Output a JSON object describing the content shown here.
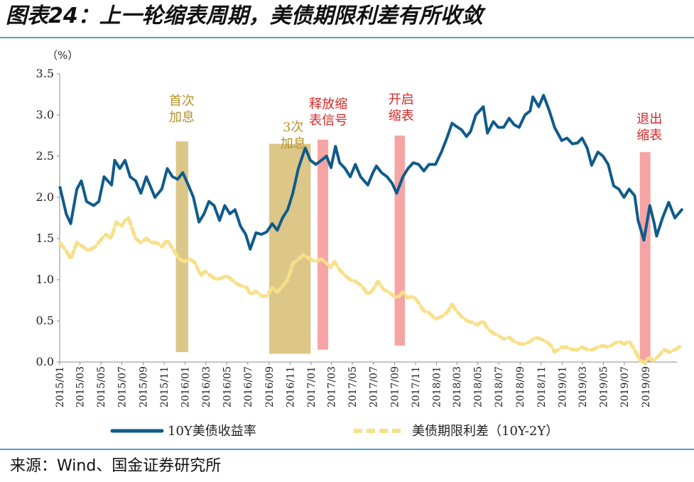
{
  "title": "图表24：上一轮缩表周期，美债期限利差有所收敛",
  "source": "来源：Wind、国金证券研究所",
  "chart_data": {
    "type": "line",
    "yunit": "（%）",
    "ylim": [
      0,
      3.5
    ],
    "yticks": [
      "0.0",
      "0.5",
      "1.0",
      "1.5",
      "2.0",
      "2.5",
      "3.0",
      "3.5"
    ],
    "xlim": [
      "2015-01",
      "2019-12"
    ],
    "xticks": [
      "2015/01",
      "2015/03",
      "2015/05",
      "2015/07",
      "2015/09",
      "2015/11",
      "2016/01",
      "2016/03",
      "2016/05",
      "2016/07",
      "2016/09",
      "2016/11",
      "2017/01",
      "2017/03",
      "2017/05",
      "2017/07",
      "2017/09",
      "2017/11",
      "2018/01",
      "2018/03",
      "2018/05",
      "2018/07",
      "2018/09",
      "2018/11",
      "2019/01",
      "2019/03",
      "2019/05",
      "2019/07",
      "2019/09"
    ],
    "grid": false,
    "legend": "bottom",
    "series": [
      {
        "name": "10Y美债收益率",
        "color": "#0f5b8c",
        "style": "solid",
        "points": [
          [
            "2015-01-02",
            2.12
          ],
          [
            "2015-01-20",
            1.8
          ],
          [
            "2015-02-02",
            1.68
          ],
          [
            "2015-02-20",
            2.1
          ],
          [
            "2015-03-05",
            2.2
          ],
          [
            "2015-03-20",
            1.95
          ],
          [
            "2015-04-10",
            1.9
          ],
          [
            "2015-04-25",
            1.95
          ],
          [
            "2015-05-10",
            2.25
          ],
          [
            "2015-06-01",
            2.15
          ],
          [
            "2015-06-10",
            2.45
          ],
          [
            "2015-06-25",
            2.35
          ],
          [
            "2015-07-10",
            2.45
          ],
          [
            "2015-07-25",
            2.25
          ],
          [
            "2015-08-10",
            2.2
          ],
          [
            "2015-08-25",
            2.05
          ],
          [
            "2015-09-10",
            2.25
          ],
          [
            "2015-09-25",
            2.1
          ],
          [
            "2015-10-05",
            2.0
          ],
          [
            "2015-10-25",
            2.1
          ],
          [
            "2015-11-10",
            2.35
          ],
          [
            "2015-11-25",
            2.25
          ],
          [
            "2015-12-10",
            2.22
          ],
          [
            "2015-12-25",
            2.3
          ],
          [
            "2016-01-10",
            2.15
          ],
          [
            "2016-01-25",
            2.0
          ],
          [
            "2016-02-10",
            1.7
          ],
          [
            "2016-02-25",
            1.8
          ],
          [
            "2016-03-10",
            1.95
          ],
          [
            "2016-03-25",
            1.9
          ],
          [
            "2016-04-10",
            1.72
          ],
          [
            "2016-04-25",
            1.9
          ],
          [
            "2016-05-10",
            1.8
          ],
          [
            "2016-05-25",
            1.85
          ],
          [
            "2016-06-10",
            1.65
          ],
          [
            "2016-06-25",
            1.55
          ],
          [
            "2016-07-08",
            1.37
          ],
          [
            "2016-07-25",
            1.57
          ],
          [
            "2016-08-10",
            1.55
          ],
          [
            "2016-08-25",
            1.58
          ],
          [
            "2016-09-10",
            1.68
          ],
          [
            "2016-09-25",
            1.6
          ],
          [
            "2016-10-10",
            1.75
          ],
          [
            "2016-10-25",
            1.85
          ],
          [
            "2016-11-09",
            2.05
          ],
          [
            "2016-11-25",
            2.35
          ],
          [
            "2016-12-15",
            2.6
          ],
          [
            "2016-12-30",
            2.45
          ],
          [
            "2017-01-15",
            2.4
          ],
          [
            "2017-01-31",
            2.45
          ],
          [
            "2017-02-15",
            2.5
          ],
          [
            "2017-02-28",
            2.36
          ],
          [
            "2017-03-13",
            2.62
          ],
          [
            "2017-03-25",
            2.42
          ],
          [
            "2017-04-10",
            2.35
          ],
          [
            "2017-04-25",
            2.25
          ],
          [
            "2017-05-10",
            2.4
          ],
          [
            "2017-05-25",
            2.25
          ],
          [
            "2017-06-15",
            2.15
          ],
          [
            "2017-06-30",
            2.3
          ],
          [
            "2017-07-10",
            2.38
          ],
          [
            "2017-07-25",
            2.3
          ],
          [
            "2017-08-10",
            2.25
          ],
          [
            "2017-08-25",
            2.17
          ],
          [
            "2017-09-07",
            2.05
          ],
          [
            "2017-09-25",
            2.25
          ],
          [
            "2017-10-10",
            2.35
          ],
          [
            "2017-10-25",
            2.42
          ],
          [
            "2017-11-10",
            2.4
          ],
          [
            "2017-11-25",
            2.32
          ],
          [
            "2017-12-10",
            2.4
          ],
          [
            "2017-12-29",
            2.4
          ],
          [
            "2018-01-15",
            2.55
          ],
          [
            "2018-01-31",
            2.72
          ],
          [
            "2018-02-15",
            2.9
          ],
          [
            "2018-02-28",
            2.86
          ],
          [
            "2018-03-15",
            2.82
          ],
          [
            "2018-03-29",
            2.74
          ],
          [
            "2018-04-10",
            2.8
          ],
          [
            "2018-04-25",
            3.0
          ],
          [
            "2018-05-17",
            3.1
          ],
          [
            "2018-05-29",
            2.78
          ],
          [
            "2018-06-15",
            2.92
          ],
          [
            "2018-06-29",
            2.85
          ],
          [
            "2018-07-15",
            2.85
          ],
          [
            "2018-07-31",
            2.96
          ],
          [
            "2018-08-15",
            2.88
          ],
          [
            "2018-08-29",
            2.85
          ],
          [
            "2018-09-15",
            3.0
          ],
          [
            "2018-09-30",
            3.05
          ],
          [
            "2018-10-08",
            3.22
          ],
          [
            "2018-10-25",
            3.1
          ],
          [
            "2018-11-08",
            3.24
          ],
          [
            "2018-11-25",
            3.05
          ],
          [
            "2018-12-10",
            2.85
          ],
          [
            "2018-12-31",
            2.69
          ],
          [
            "2019-01-15",
            2.72
          ],
          [
            "2019-01-31",
            2.65
          ],
          [
            "2019-02-15",
            2.66
          ],
          [
            "2019-02-28",
            2.72
          ],
          [
            "2019-03-15",
            2.6
          ],
          [
            "2019-03-28",
            2.39
          ],
          [
            "2019-04-15",
            2.55
          ],
          [
            "2019-04-30",
            2.5
          ],
          [
            "2019-05-15",
            2.4
          ],
          [
            "2019-05-31",
            2.14
          ],
          [
            "2019-06-15",
            2.1
          ],
          [
            "2019-06-30",
            2.0
          ],
          [
            "2019-07-15",
            2.1
          ],
          [
            "2019-07-31",
            2.02
          ],
          [
            "2019-08-10",
            1.72
          ],
          [
            "2019-08-27",
            1.48
          ],
          [
            "2019-09-13",
            1.9
          ],
          [
            "2019-09-25",
            1.7
          ],
          [
            "2019-10-03",
            1.53
          ],
          [
            "2019-10-20",
            1.75
          ],
          [
            "2019-11-07",
            1.94
          ],
          [
            "2019-11-25",
            1.75
          ],
          [
            "2019-12-15",
            1.85
          ]
        ]
      },
      {
        "name": "美债期限利差（10Y-2Y）",
        "color": "#f8e08a",
        "style": "dashed",
        "points": [
          [
            "2015-01-02",
            1.45
          ],
          [
            "2015-01-20",
            1.35
          ],
          [
            "2015-02-02",
            1.25
          ],
          [
            "2015-02-20",
            1.45
          ],
          [
            "2015-03-10",
            1.4
          ],
          [
            "2015-03-25",
            1.35
          ],
          [
            "2015-04-15",
            1.4
          ],
          [
            "2015-04-30",
            1.48
          ],
          [
            "2015-05-15",
            1.55
          ],
          [
            "2015-05-30",
            1.5
          ],
          [
            "2015-06-15",
            1.7
          ],
          [
            "2015-06-30",
            1.65
          ],
          [
            "2015-07-10",
            1.72
          ],
          [
            "2015-07-20",
            1.75
          ],
          [
            "2015-08-10",
            1.5
          ],
          [
            "2015-08-25",
            1.45
          ],
          [
            "2015-09-10",
            1.5
          ],
          [
            "2015-09-25",
            1.45
          ],
          [
            "2015-10-10",
            1.45
          ],
          [
            "2015-10-25",
            1.4
          ],
          [
            "2015-11-10",
            1.48
          ],
          [
            "2015-11-25",
            1.38
          ],
          [
            "2015-12-15",
            1.25
          ],
          [
            "2015-12-30",
            1.22
          ],
          [
            "2016-01-15",
            1.25
          ],
          [
            "2016-01-31",
            1.2
          ],
          [
            "2016-02-15",
            1.05
          ],
          [
            "2016-02-28",
            1.1
          ],
          [
            "2016-03-15",
            1.05
          ],
          [
            "2016-03-31",
            1.0
          ],
          [
            "2016-04-15",
            1.02
          ],
          [
            "2016-04-30",
            1.05
          ],
          [
            "2016-05-15",
            1.0
          ],
          [
            "2016-05-30",
            0.95
          ],
          [
            "2016-06-15",
            0.92
          ],
          [
            "2016-06-30",
            0.9
          ],
          [
            "2016-07-08",
            0.82
          ],
          [
            "2016-07-25",
            0.86
          ],
          [
            "2016-08-10",
            0.8
          ],
          [
            "2016-08-25",
            0.8
          ],
          [
            "2016-09-10",
            0.9
          ],
          [
            "2016-09-25",
            0.85
          ],
          [
            "2016-10-10",
            0.92
          ],
          [
            "2016-10-25",
            1.0
          ],
          [
            "2016-11-10",
            1.2
          ],
          [
            "2016-11-25",
            1.25
          ],
          [
            "2016-12-10",
            1.3
          ],
          [
            "2016-12-30",
            1.25
          ],
          [
            "2017-01-15",
            1.22
          ],
          [
            "2017-01-31",
            1.25
          ],
          [
            "2017-02-15",
            1.2
          ],
          [
            "2017-02-28",
            1.15
          ],
          [
            "2017-03-10",
            1.22
          ],
          [
            "2017-03-25",
            1.12
          ],
          [
            "2017-04-10",
            1.05
          ],
          [
            "2017-04-25",
            1.0
          ],
          [
            "2017-05-10",
            0.98
          ],
          [
            "2017-05-30",
            0.92
          ],
          [
            "2017-06-15",
            0.82
          ],
          [
            "2017-06-30",
            0.88
          ],
          [
            "2017-07-15",
            0.98
          ],
          [
            "2017-07-31",
            0.88
          ],
          [
            "2017-08-15",
            0.85
          ],
          [
            "2017-08-30",
            0.8
          ],
          [
            "2017-09-10",
            0.78
          ],
          [
            "2017-09-25",
            0.85
          ],
          [
            "2017-10-10",
            0.78
          ],
          [
            "2017-10-25",
            0.8
          ],
          [
            "2017-11-10",
            0.72
          ],
          [
            "2017-11-25",
            0.62
          ],
          [
            "2017-12-10",
            0.6
          ],
          [
            "2017-12-29",
            0.52
          ],
          [
            "2018-01-15",
            0.55
          ],
          [
            "2018-01-31",
            0.6
          ],
          [
            "2018-02-15",
            0.7
          ],
          [
            "2018-02-28",
            0.62
          ],
          [
            "2018-03-15",
            0.55
          ],
          [
            "2018-03-31",
            0.5
          ],
          [
            "2018-04-15",
            0.48
          ],
          [
            "2018-04-30",
            0.45
          ],
          [
            "2018-05-15",
            0.5
          ],
          [
            "2018-05-31",
            0.4
          ],
          [
            "2018-06-15",
            0.35
          ],
          [
            "2018-06-30",
            0.32
          ],
          [
            "2018-07-15",
            0.28
          ],
          [
            "2018-07-31",
            0.3
          ],
          [
            "2018-08-15",
            0.25
          ],
          [
            "2018-08-31",
            0.22
          ],
          [
            "2018-09-15",
            0.22
          ],
          [
            "2018-09-30",
            0.25
          ],
          [
            "2018-10-15",
            0.3
          ],
          [
            "2018-10-31",
            0.28
          ],
          [
            "2018-11-15",
            0.25
          ],
          [
            "2018-11-30",
            0.2
          ],
          [
            "2018-12-10",
            0.12
          ],
          [
            "2018-12-31",
            0.18
          ],
          [
            "2019-01-15",
            0.18
          ],
          [
            "2019-01-31",
            0.15
          ],
          [
            "2019-02-15",
            0.15
          ],
          [
            "2019-02-28",
            0.18
          ],
          [
            "2019-03-15",
            0.15
          ],
          [
            "2019-03-31",
            0.15
          ],
          [
            "2019-04-15",
            0.18
          ],
          [
            "2019-04-30",
            0.2
          ],
          [
            "2019-05-15",
            0.18
          ],
          [
            "2019-05-31",
            0.22
          ],
          [
            "2019-06-15",
            0.25
          ],
          [
            "2019-06-30",
            0.22
          ],
          [
            "2019-07-15",
            0.25
          ],
          [
            "2019-07-31",
            0.15
          ],
          [
            "2019-08-15",
            0.02
          ],
          [
            "2019-08-28",
            -0.01
          ],
          [
            "2019-09-10",
            0.05
          ],
          [
            "2019-09-25",
            0.02
          ],
          [
            "2019-10-10",
            0.08
          ],
          [
            "2019-10-25",
            0.15
          ],
          [
            "2019-11-10",
            0.12
          ],
          [
            "2019-11-25",
            0.15
          ],
          [
            "2019-12-15",
            0.2
          ]
        ]
      }
    ],
    "bands": [
      {
        "from": "2015-12-05",
        "to": "2016-01-10",
        "ymin": 0.12,
        "ymax": 2.68,
        "color": "#d9c17b",
        "label": [
          "首次",
          "加息"
        ],
        "label_color": "#b8932a",
        "label_x": "2015-12-22",
        "label_y": 3.12
      },
      {
        "from": "2016-09-01",
        "to": "2016-12-31",
        "ymin": 0.1,
        "ymax": 2.65,
        "color": "#d9c17b",
        "label": [
          "3次",
          "加息"
        ],
        "label_color": "#b8932a",
        "label_x": "2016-11-10",
        "label_y": 2.8
      },
      {
        "from": "2017-01-20",
        "to": "2017-02-20",
        "ymin": 0.15,
        "ymax": 2.7,
        "color": "#f59a9a",
        "label": [
          "释放缩",
          "表信号"
        ],
        "label_color": "#d62728",
        "label_x": "2017-02-20",
        "label_y": 3.08
      },
      {
        "from": "2017-09-01",
        "to": "2017-10-01",
        "ymin": 0.2,
        "ymax": 2.75,
        "color": "#f59a9a",
        "label": [
          "开启",
          "缩表"
        ],
        "label_color": "#d62728",
        "label_x": "2017-09-20",
        "label_y": 3.14
      },
      {
        "from": "2019-08-15",
        "to": "2019-09-15",
        "ymin": 0.0,
        "ymax": 2.55,
        "color": "#f59a9a",
        "label": [
          "退出",
          "缩表"
        ],
        "label_color": "#d62728",
        "label_x": "2019-09-12",
        "label_y": 2.9
      }
    ]
  }
}
